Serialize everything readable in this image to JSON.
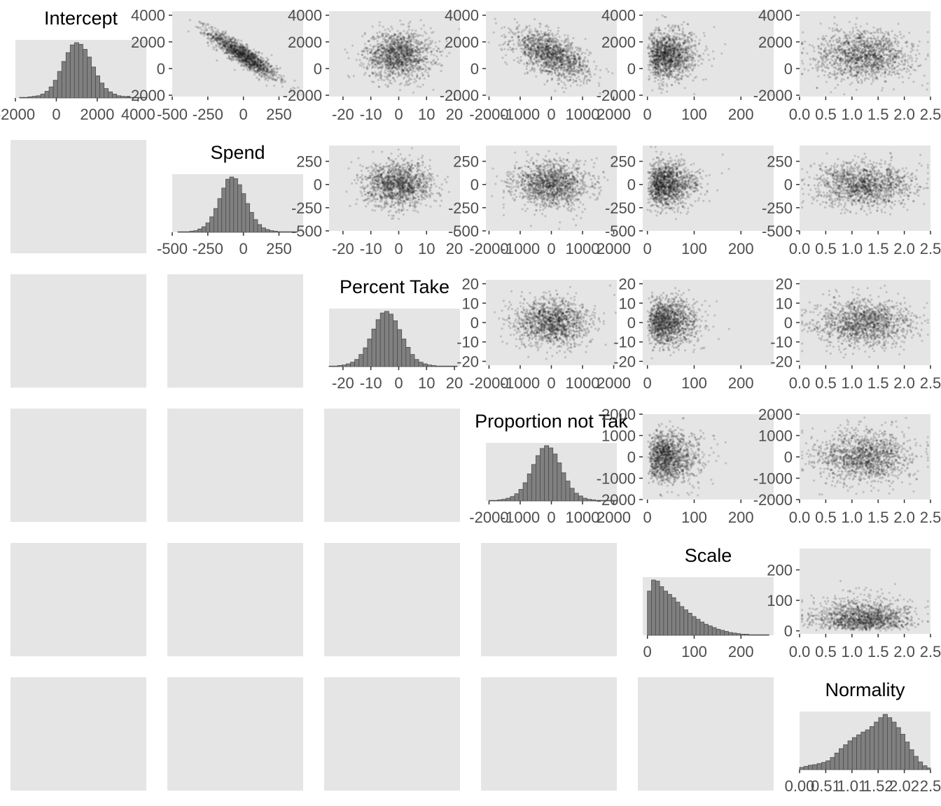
{
  "chart_data": {
    "type": "pairs",
    "description_title": "",
    "variables": [
      "Intercept",
      "Spend",
      "Percent Take",
      "Proportion not Take",
      "Scale",
      "Normality"
    ],
    "panel_titles": [
      "Intercept",
      "Spend",
      "Percent Take",
      "Proportion not Tak",
      "Scale",
      "Normality"
    ],
    "ranges": [
      [
        -2000,
        4400
      ],
      [
        -500,
        420
      ],
      [
        -25,
        22
      ],
      [
        -2100,
        2100
      ],
      [
        -10,
        270
      ],
      [
        0.0,
        2.5
      ]
    ],
    "ticks": [
      [
        -2000,
        0,
        2000,
        4000
      ],
      [
        -500,
        -250,
        0,
        250
      ],
      [
        -20,
        -10,
        0,
        10,
        20
      ],
      [
        -2000,
        -1000,
        0,
        1000,
        2000
      ],
      [
        0,
        100,
        200
      ],
      [
        0.0,
        0.5,
        1.0,
        1.5,
        2.0,
        2.5
      ]
    ],
    "tick_labels": [
      [
        "-2000",
        "0",
        "2000",
        "4000"
      ],
      [
        "-500",
        "-250",
        "0",
        "250"
      ],
      [
        "-20",
        "-10",
        "0",
        "10",
        "20"
      ],
      [
        "-2000",
        "-1000",
        "0",
        "1000",
        "2000"
      ],
      [
        "0",
        "100",
        "200"
      ],
      [
        "0.0",
        "0.5",
        "1.0",
        "1.5",
        "2.0",
        "2.5"
      ]
    ],
    "diagonal_tick_labels": [
      [
        "-2000",
        "0",
        "2000",
        "4000"
      ],
      [
        "-500",
        "-250",
        "0",
        "250"
      ],
      [
        "-20",
        "-10",
        "0",
        "10",
        "20"
      ],
      [
        "-2000",
        "-1000",
        "0",
        "1000",
        "2000"
      ],
      [
        "0",
        "100",
        "200"
      ],
      [
        "0.00",
        "0.51",
        "1.01",
        "1.52",
        "2.02",
        "2.5"
      ]
    ],
    "upper_x_ticks": [
      [
        -500,
        -250,
        0,
        250
      ],
      [
        -20,
        -10,
        0,
        10,
        20
      ],
      [
        -2000,
        -1000,
        0,
        1000,
        2000
      ],
      [
        0,
        100,
        200
      ],
      [
        0.0,
        0.5,
        1.0,
        1.5,
        2.0,
        2.5
      ]
    ],
    "upper_y_ticks": {
      "Intercept": [
        -2000,
        0,
        2000,
        4000
      ],
      "Spend": [
        -500,
        -250,
        0,
        250
      ],
      "Percent Take": [
        -20,
        -10,
        0,
        10,
        20
      ],
      "Proportion not Take": [
        -2000,
        -1000,
        0,
        1000,
        2000
      ],
      "Scale": [
        0,
        100,
        200
      ]
    },
    "upper_y_ranges": {
      "Intercept": [
        -2100,
        4300
      ],
      "Spend": [
        -500,
        420
      ],
      "Percent Take": [
        -22,
        22
      ],
      "Proportion not Take": [
        -2000,
        2000
      ],
      "Scale": [
        -10,
        270
      ]
    },
    "scale_y_ticks": [
      0,
      100,
      200
    ],
    "histograms": {
      "Intercept": {
        "edges_min": -1800,
        "edges_max": 4400,
        "counts": [
          1,
          1,
          2,
          3,
          4,
          7,
          12,
          20,
          32,
          48,
          66,
          82,
          96,
          100,
          97,
          88,
          74,
          56,
          40,
          27,
          17,
          11,
          7,
          4,
          3,
          2,
          1,
          1,
          1,
          1
        ]
      },
      "Spend": {
        "edges_min": -460,
        "edges_max": 380,
        "counts": [
          1,
          1,
          1,
          2,
          3,
          6,
          10,
          17,
          28,
          43,
          61,
          80,
          96,
          100,
          97,
          86,
          70,
          52,
          36,
          23,
          14,
          8,
          5,
          3,
          2,
          1,
          1,
          1,
          1,
          1
        ]
      },
      "Percent Take": {
        "edges_min": -25,
        "edges_max": 21,
        "counts": [
          1,
          1,
          2,
          3,
          5,
          8,
          13,
          22,
          34,
          50,
          68,
          85,
          97,
          100,
          95,
          83,
          67,
          50,
          35,
          22,
          13,
          8,
          5,
          3,
          2,
          1,
          1,
          1,
          1,
          1
        ]
      },
      "Proportion not Take": {
        "edges_min": -2000,
        "edges_max": 2100,
        "counts": [
          1,
          1,
          2,
          3,
          5,
          8,
          13,
          21,
          33,
          49,
          66,
          82,
          95,
          100,
          96,
          85,
          69,
          51,
          36,
          23,
          14,
          9,
          5,
          3,
          2,
          1,
          1,
          1,
          1,
          1
        ]
      },
      "Scale": {
        "edges_min": 0,
        "edges_max": 260,
        "counts": [
          80,
          100,
          98,
          88,
          80,
          74,
          68,
          60,
          52,
          46,
          40,
          34,
          29,
          24,
          20,
          17,
          14,
          11,
          9,
          7,
          5,
          4,
          3,
          2,
          2,
          1,
          1,
          1,
          1,
          1
        ]
      },
      "Normality": {
        "edges_min": 0.0,
        "edges_max": 2.6,
        "counts": [
          4,
          6,
          8,
          9,
          11,
          13,
          16,
          22,
          30,
          38,
          45,
          52,
          58,
          63,
          68,
          72,
          78,
          86,
          94,
          100,
          94,
          86,
          76,
          64,
          50,
          36,
          24,
          14,
          7,
          3,
          1
        ]
      }
    },
    "scatter": {
      "points_per_panel": 1400,
      "point_color": "#1a1a1a",
      "point_opacity": 0.18,
      "means": {
        "Intercept": 1000,
        "Spend": 0,
        "Percent Take": 0,
        "Proportion not Take": 0,
        "Scale": 50,
        "Normality": 1.3
      },
      "sds": {
        "Intercept": 900,
        "Spend": 120,
        "Percent Take": 6,
        "Proportion not Take": 600,
        "Scale": 45,
        "Normality": 0.45
      },
      "correlations": {
        "Intercept|Spend": -0.9,
        "Intercept|Proportion not Take": -0.55
      }
    },
    "colors": {
      "panel_bg": "#e5e5e5",
      "bar_fill": "#808080",
      "bar_stroke": "#4d4d4d",
      "tick_text": "#4d4d4d",
      "tick_mark": "#333333",
      "title_text": "#000000"
    },
    "grid": false,
    "legend": "none"
  }
}
